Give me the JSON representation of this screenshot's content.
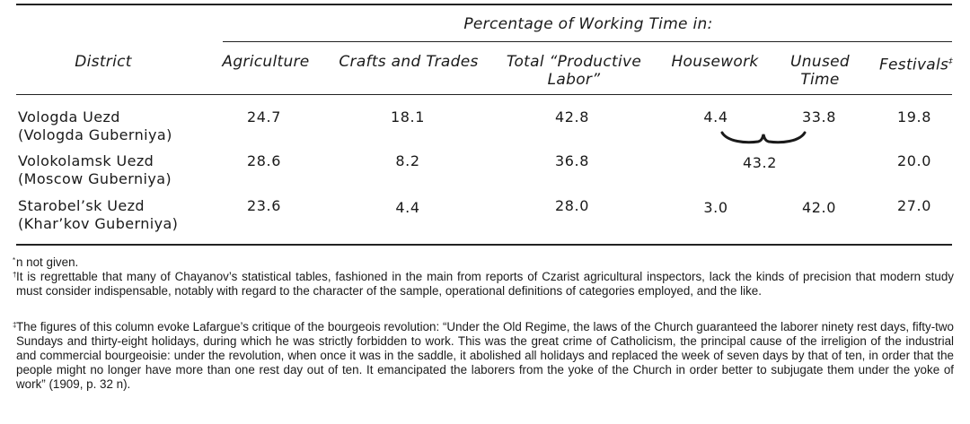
{
  "table": {
    "group_header": "Percentage of Working Time in:",
    "columns": {
      "district": "District",
      "agriculture": "Agriculture",
      "crafts": "Crafts and Trades",
      "productive_line1": "Total “Productive",
      "productive_line2": "Labor”",
      "housework": "Housework",
      "unused_line1": "Unused",
      "unused_line2": "Time",
      "festivals": "Festivals",
      "festivals_mark": "‡"
    },
    "rows": [
      {
        "district_line1": "Vologda Uezd",
        "district_line2": "(Vologda Guberniya)",
        "agriculture": "24.7",
        "crafts": "18.1",
        "productive": "42.8",
        "housework": "4.4",
        "unused": "33.8",
        "festivals": "19.8"
      },
      {
        "district_line1": "Volokolamsk Uezd",
        "district_line2": "(Moscow Guberniya)",
        "agriculture": "28.6",
        "crafts": "8.2",
        "productive": "36.8",
        "housework_unused_combined": "43.2",
        "festivals": "20.0"
      },
      {
        "district_line1": "Starobel’sk Uezd",
        "district_line2": "(Khar’kov Guberniya)",
        "agriculture": "23.6",
        "crafts": "4.4",
        "productive": "28.0",
        "housework": "3.0",
        "unused": "42.0",
        "festivals": "27.0"
      }
    ]
  },
  "footnotes": [
    {
      "mark": "*",
      "text": "n not given."
    },
    {
      "mark": "†",
      "text": "It is regrettable that many of Chayanov’s statistical tables, fashioned in the main from reports of Czarist agricultural inspectors, lack the kinds of precision that modern study must consider indispensable, notably with regard to the character of the sample, operational definitions of categories employed, and the like."
    },
    {
      "mark": "‡",
      "text": "The figures of this column evoke Lafargue’s critique of the bourgeois revolution: “Under the Old Regime, the laws of the Church guaranteed the laborer ninety rest days, fifty-two Sundays and thirty-eight holidays, during which he was strictly forbidden to work. This was the great crime of Catholicism, the principal cause of the irreligion of the industrial and commercial bourgeoisie: under the revolution, when once it was in the saddle, it abolished all holidays and replaced the week of seven days by that of ten, in order that the people might no longer have more than one rest day out of ten. It emancipated the laborers from the yoke of the Church in order better to subjugate them under the yoke of work” (1909, p. 32 n)."
    }
  ]
}
